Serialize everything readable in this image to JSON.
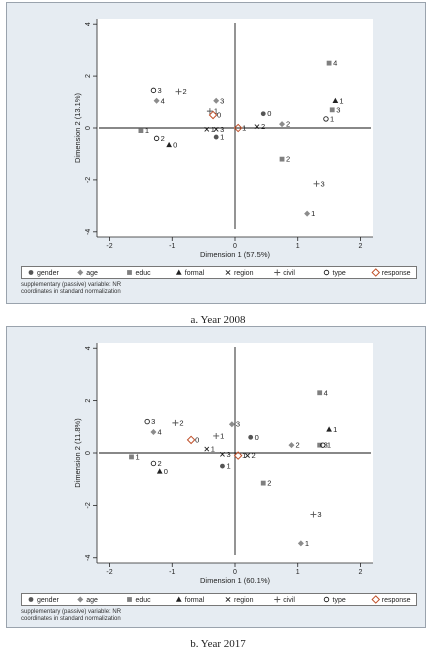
{
  "legend": [
    {
      "label": "gender",
      "marker": "circle-filled",
      "color": "#555555"
    },
    {
      "label": "age",
      "marker": "diamond-filled",
      "color": "#8c8c8c"
    },
    {
      "label": "educ",
      "marker": "square-filled",
      "color": "#7f7f7f"
    },
    {
      "label": "formal",
      "marker": "triangle-filled",
      "color": "#222222"
    },
    {
      "label": "region",
      "marker": "x",
      "color": "#222222"
    },
    {
      "label": "civil",
      "marker": "plus",
      "color": "#555555"
    },
    {
      "label": "type",
      "marker": "circle-open",
      "color": "#222222"
    },
    {
      "label": "response",
      "marker": "diamond-open",
      "color": "#c0502a"
    }
  ],
  "chart_data": [
    {
      "type": "scatter",
      "caption": "a.     Year 2008",
      "xlabel": "Dimension 1 (57.5%)",
      "ylabel": "Dimension 2 (13.1%)",
      "xlim": [
        -2.2,
        2.2
      ],
      "ylim": [
        -4.2,
        4.2
      ],
      "xticks": [
        -2,
        -1,
        0,
        1,
        2
      ],
      "yticks": [
        -4,
        -2,
        0,
        2,
        4
      ],
      "grid": false,
      "legend_position": "bottom",
      "note": [
        "supplementary (passive) variable: NR",
        "coordinates in standard normalization"
      ],
      "points": [
        {
          "series": "gender",
          "label": "0",
          "x": 0.45,
          "y": 0.55
        },
        {
          "series": "gender",
          "label": "1",
          "x": -0.3,
          "y": -0.35
        },
        {
          "series": "age",
          "label": "4",
          "x": -1.25,
          "y": 1.05
        },
        {
          "series": "age",
          "label": "3",
          "x": -0.3,
          "y": 1.05
        },
        {
          "series": "age",
          "label": "2",
          "x": 0.75,
          "y": 0.15
        },
        {
          "series": "age",
          "label": "1",
          "x": 1.15,
          "y": -3.3
        },
        {
          "series": "educ",
          "label": "1",
          "x": -1.5,
          "y": -0.1
        },
        {
          "series": "educ",
          "label": "2",
          "x": 0.75,
          "y": -1.2
        },
        {
          "series": "educ",
          "label": "3",
          "x": 1.55,
          "y": 0.7
        },
        {
          "series": "educ",
          "label": "4",
          "x": 1.5,
          "y": 2.5
        },
        {
          "series": "formal",
          "label": "0",
          "x": -1.05,
          "y": -0.65
        },
        {
          "series": "formal",
          "label": "1",
          "x": 1.6,
          "y": 1.05
        },
        {
          "series": "region",
          "label": "1",
          "x": -0.45,
          "y": -0.05
        },
        {
          "series": "region",
          "label": "3",
          "x": -0.3,
          "y": -0.05
        },
        {
          "series": "region",
          "label": "2",
          "x": 0.35,
          "y": 0.05
        },
        {
          "series": "civil",
          "label": "2",
          "x": -0.9,
          "y": 1.4
        },
        {
          "series": "civil",
          "label": "1",
          "x": -0.4,
          "y": 0.65
        },
        {
          "series": "civil",
          "label": "3",
          "x": 1.3,
          "y": -2.15
        },
        {
          "series": "type",
          "label": "3",
          "x": -1.3,
          "y": 1.45
        },
        {
          "series": "type",
          "label": "2",
          "x": -1.25,
          "y": -0.4
        },
        {
          "series": "type",
          "label": "1",
          "x": 1.45,
          "y": 0.35
        },
        {
          "series": "response",
          "label": "0",
          "x": -0.35,
          "y": 0.5
        },
        {
          "series": "response",
          "label": "1",
          "x": 0.05,
          "y": 0.0
        }
      ]
    },
    {
      "type": "scatter",
      "caption": "b.     Year 2017",
      "xlabel": "Dimension 1 (60.1%)",
      "ylabel": "Dimension 2 (11.8%)",
      "xlim": [
        -2.2,
        2.2
      ],
      "ylim": [
        -4.2,
        4.2
      ],
      "xticks": [
        -2,
        -1,
        0,
        1,
        2
      ],
      "yticks": [
        -4,
        -2,
        0,
        2,
        4
      ],
      "grid": false,
      "legend_position": "bottom",
      "note": [
        "supplementary (passive) variable: NR",
        "coordinates in standard normalization"
      ],
      "points": [
        {
          "series": "gender",
          "label": "0",
          "x": 0.25,
          "y": 0.6
        },
        {
          "series": "gender",
          "label": "1",
          "x": -0.2,
          "y": -0.5
        },
        {
          "series": "age",
          "label": "4",
          "x": -1.3,
          "y": 0.8
        },
        {
          "series": "age",
          "label": "3",
          "x": -0.05,
          "y": 1.1
        },
        {
          "series": "age",
          "label": "2",
          "x": 0.9,
          "y": 0.3
        },
        {
          "series": "age",
          "label": "1",
          "x": 1.05,
          "y": -3.45
        },
        {
          "series": "educ",
          "label": "1",
          "x": -1.65,
          "y": -0.15
        },
        {
          "series": "educ",
          "label": "2",
          "x": 0.45,
          "y": -1.15
        },
        {
          "series": "educ",
          "label": "3",
          "x": 1.35,
          "y": 0.3
        },
        {
          "series": "educ",
          "label": "4",
          "x": 1.35,
          "y": 2.3
        },
        {
          "series": "formal",
          "label": "0",
          "x": -1.2,
          "y": -0.7
        },
        {
          "series": "formal",
          "label": "1",
          "x": 1.5,
          "y": 0.9
        },
        {
          "series": "region",
          "label": "1",
          "x": -0.45,
          "y": 0.15
        },
        {
          "series": "region",
          "label": "3",
          "x": -0.2,
          "y": -0.05
        },
        {
          "series": "region",
          "label": "2",
          "x": 0.2,
          "y": -0.1
        },
        {
          "series": "civil",
          "label": "2",
          "x": -0.95,
          "y": 1.15
        },
        {
          "series": "civil",
          "label": "1",
          "x": -0.3,
          "y": 0.65
        },
        {
          "series": "civil",
          "label": "3",
          "x": 1.25,
          "y": -2.35
        },
        {
          "series": "type",
          "label": "3",
          "x": -1.4,
          "y": 1.2
        },
        {
          "series": "type",
          "label": "2",
          "x": -1.3,
          "y": -0.4
        },
        {
          "series": "type",
          "label": "1",
          "x": 1.4,
          "y": 0.3
        },
        {
          "series": "response",
          "label": "0",
          "x": -0.7,
          "y": 0.5
        },
        {
          "series": "response",
          "label": "1",
          "x": 0.05,
          "y": -0.1
        }
      ]
    }
  ]
}
